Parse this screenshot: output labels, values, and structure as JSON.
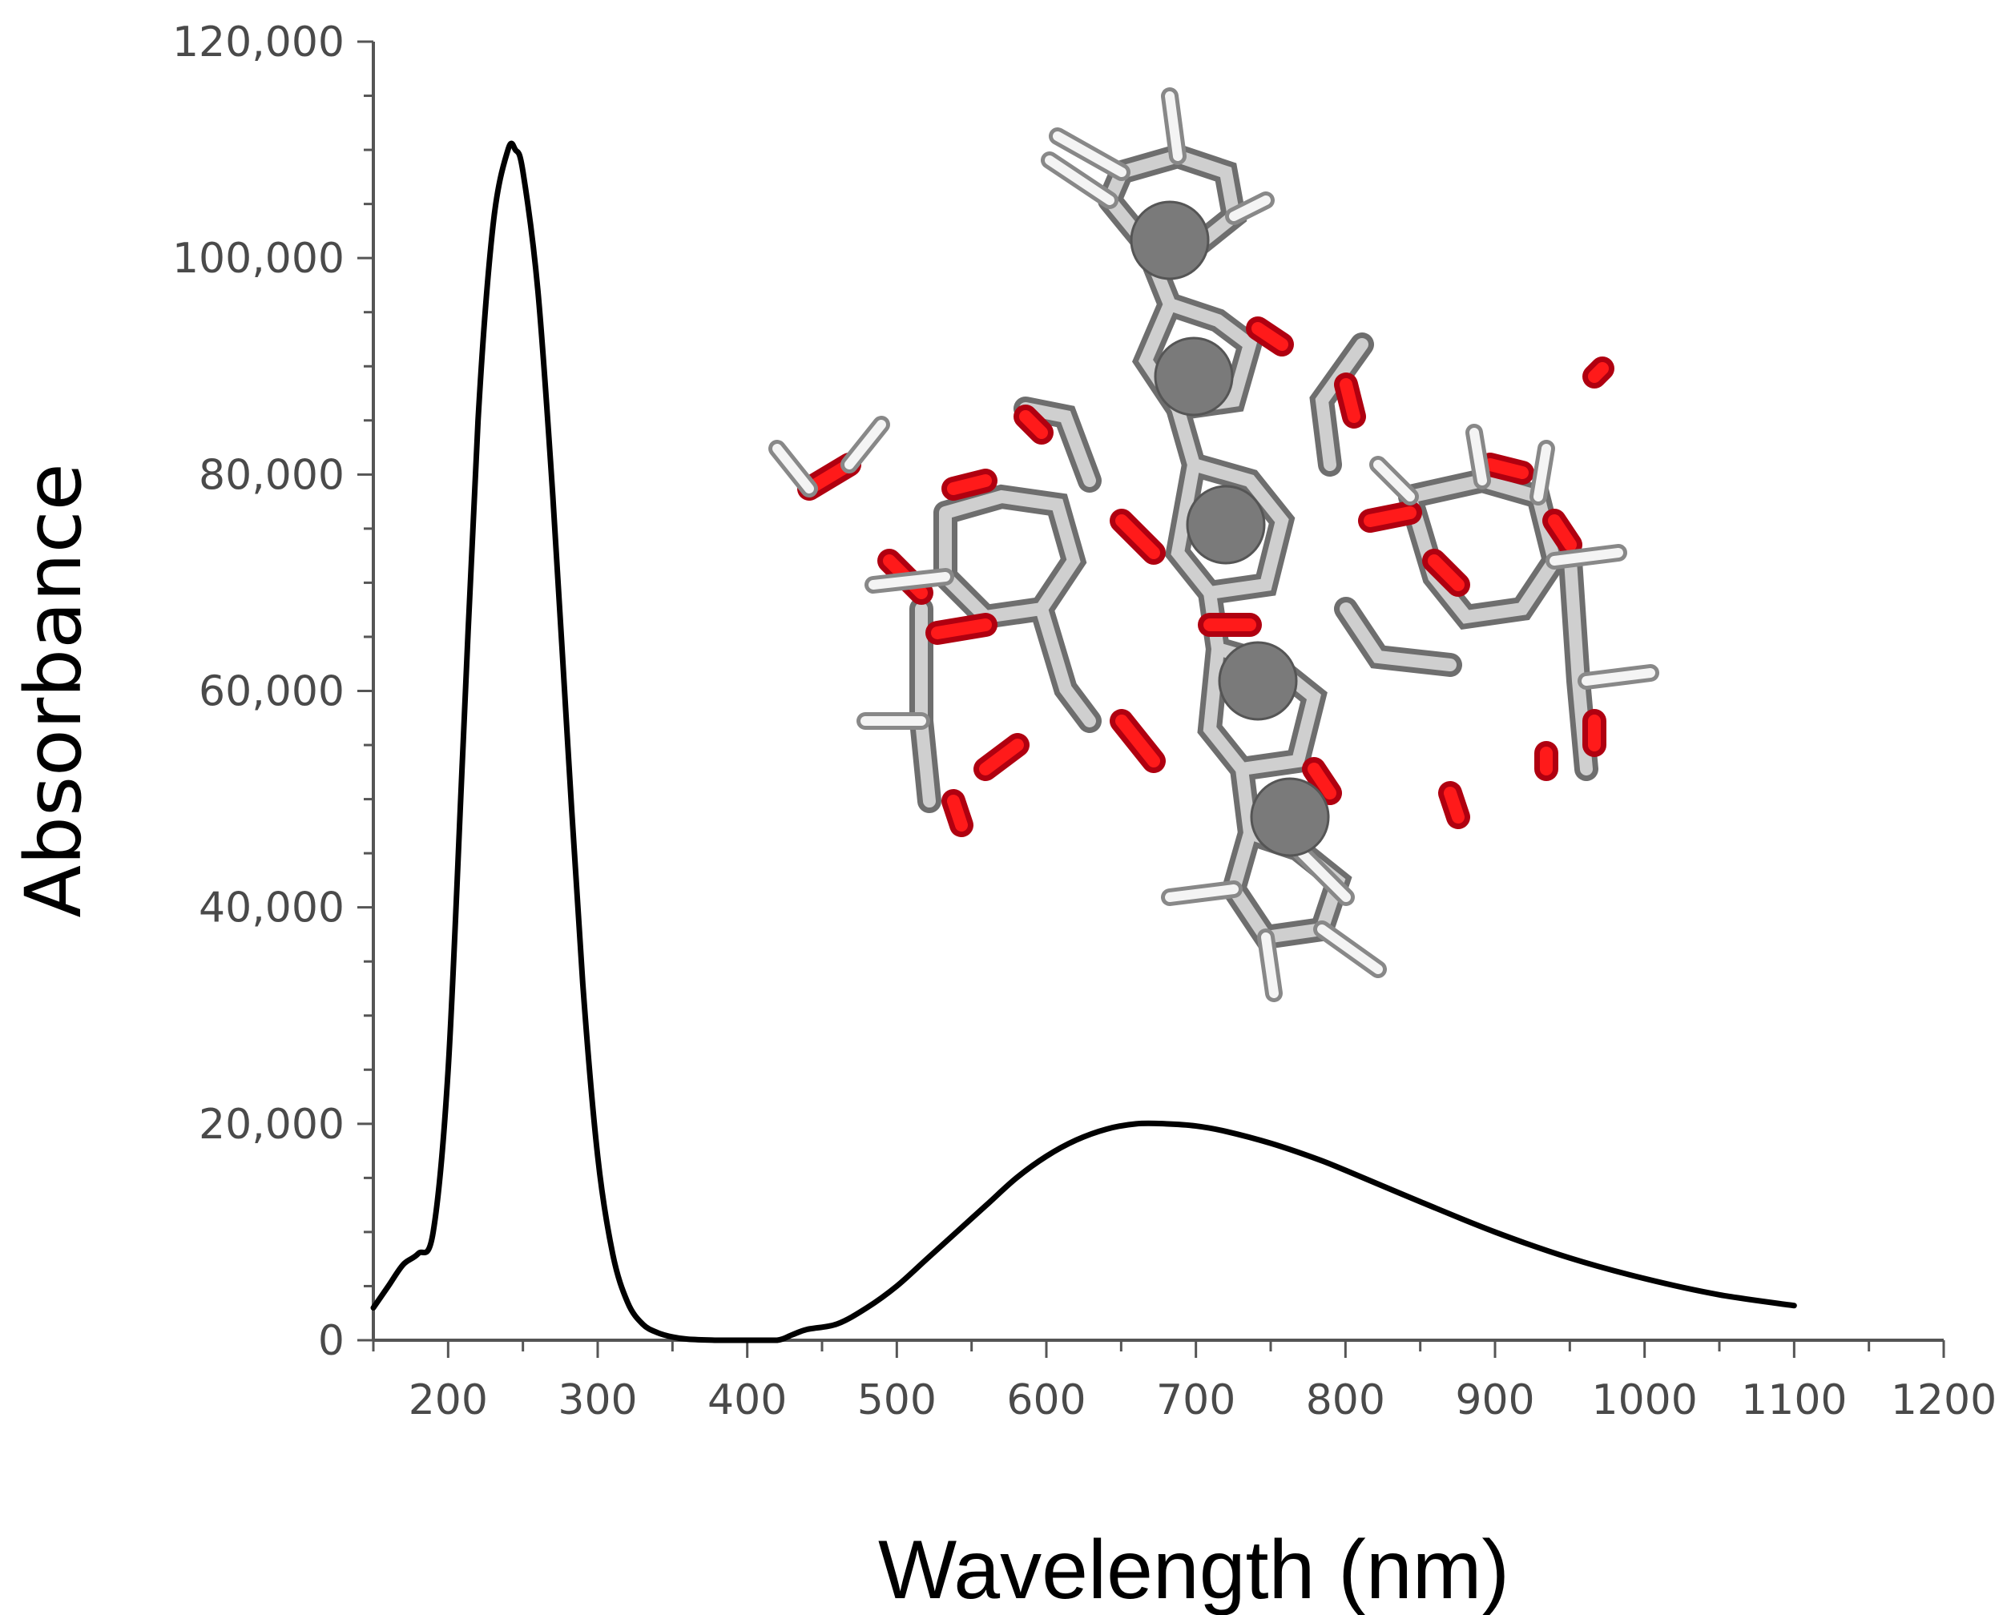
{
  "chart_data": {
    "type": "line",
    "title": "",
    "xlabel": "Wavelength (nm)",
    "ylabel": "Absorbance",
    "xlim": [
      150,
      1200
    ],
    "ylim": [
      0,
      120000
    ],
    "x_ticks": [
      200,
      300,
      400,
      500,
      600,
      700,
      800,
      900,
      1000,
      1100,
      1200
    ],
    "x_tick_labels": [
      "200",
      "300",
      "400",
      "500",
      "600",
      "700",
      "800",
      "900",
      "1000",
      "1100",
      "1200"
    ],
    "y_ticks": [
      0,
      20000,
      40000,
      60000,
      80000,
      100000,
      120000
    ],
    "y_tick_labels": [
      "0",
      "20,000",
      "40,000",
      "60,000",
      "80,000",
      "100,000",
      "120,000"
    ],
    "grid": false,
    "series": [
      {
        "color": "#000000",
        "x": [
          150,
          160,
          170,
          180,
          190,
          200,
          210,
          220,
          230,
          240,
          245,
          250,
          260,
          270,
          280,
          290,
          300,
          310,
          320,
          330,
          340,
          350,
          360,
          380,
          400,
          420,
          430,
          440,
          460,
          480,
          500,
          520,
          540,
          560,
          580,
          600,
          620,
          640,
          660,
          680,
          700,
          720,
          750,
          780,
          800,
          850,
          900,
          950,
          1000,
          1050,
          1100
        ],
        "y": [
          3000,
          5000,
          7000,
          8000,
          10000,
          25000,
          55000,
          85000,
          103000,
          110000,
          110000,
          108000,
          97000,
          78000,
          55000,
          33000,
          17000,
          8000,
          3500,
          1500,
          700,
          300,
          100,
          0,
          0,
          0,
          500,
          1000,
          1500,
          3000,
          5000,
          7500,
          10000,
          12500,
          15000,
          17000,
          18500,
          19500,
          20000,
          20000,
          19800,
          19300,
          18200,
          16800,
          15700,
          12800,
          10000,
          7600,
          5700,
          4200,
          3200
        ]
      }
    ],
    "inset_image": "molecule-stick-model"
  }
}
